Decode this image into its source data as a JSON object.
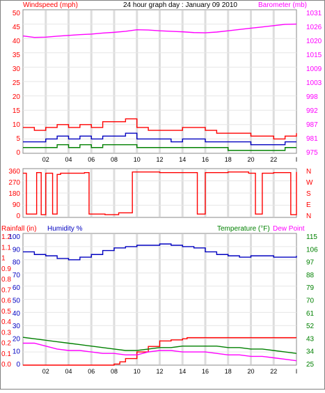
{
  "header": {
    "left_label": "Windspeed (mph)",
    "title": "24 hour graph day : January 09 2010",
    "right_label": "Barometer (mb)"
  },
  "colors": {
    "wind": "#ff0000",
    "wind_avg": "#0000c0",
    "wind_gust_low": "#008000",
    "barometer": "#ff00ff",
    "rain": "#ff0000",
    "humidity": "#0000c0",
    "temperature": "#008000",
    "dewpoint": "#ff00ff",
    "grid": "#c8c8c8"
  },
  "chart_data": [
    {
      "type": "line",
      "title": "24 hour graph day : January 09 2010",
      "ylabel_left": "Windspeed (mph)",
      "ylabel_right": "Barometer (mb)",
      "x_ticks": [
        "02",
        "04",
        "06",
        "08",
        "10",
        "12",
        "14",
        "16",
        "18",
        "20",
        "22",
        "I"
      ],
      "y_ticks_left": [
        "50",
        "45",
        "40",
        "35",
        "30",
        "25",
        "20",
        "15",
        "10",
        "5",
        "0"
      ],
      "y_ticks_right": [
        "1031",
        "1026",
        "1020",
        "1015",
        "1009",
        "1003",
        "998",
        "992",
        "987",
        "981",
        "975"
      ],
      "ylim_left": [
        0,
        50
      ],
      "ylim_right": [
        975,
        1031
      ],
      "grid": true,
      "series": [
        {
          "name": "Windspeed (mph)",
          "axis": "left",
          "x": [
            0,
            1,
            2,
            3,
            4,
            5,
            6,
            7,
            8,
            9,
            10,
            11,
            12,
            13,
            14,
            15,
            16,
            17,
            18,
            19,
            20,
            21,
            22,
            23,
            24
          ],
          "values": [
            9,
            8,
            9,
            10,
            9,
            10,
            9,
            11,
            11,
            12,
            9,
            8,
            8,
            8,
            9,
            9,
            8,
            7,
            7,
            7,
            6,
            6,
            5,
            6,
            7
          ]
        },
        {
          "name": "Wind average",
          "axis": "left",
          "x": [
            0,
            1,
            2,
            3,
            4,
            5,
            6,
            7,
            8,
            9,
            10,
            11,
            12,
            13,
            14,
            15,
            16,
            17,
            18,
            19,
            20,
            21,
            22,
            23,
            24
          ],
          "values": [
            4,
            4,
            5,
            6,
            5,
            6,
            5,
            6,
            6,
            7,
            5,
            5,
            5,
            4,
            5,
            5,
            4,
            4,
            4,
            4,
            3,
            3,
            3,
            4,
            4
          ]
        },
        {
          "name": "Wind low",
          "axis": "left",
          "x": [
            0,
            1,
            2,
            3,
            4,
            5,
            6,
            7,
            8,
            9,
            10,
            11,
            12,
            13,
            14,
            15,
            16,
            17,
            18,
            19,
            20,
            21,
            22,
            23,
            24
          ],
          "values": [
            2,
            2,
            2,
            3,
            2,
            3,
            2,
            3,
            3,
            3,
            2,
            2,
            2,
            2,
            2,
            2,
            2,
            2,
            1,
            1,
            1,
            1,
            1,
            2,
            2
          ]
        },
        {
          "name": "Barometer (mb)",
          "axis": "right",
          "x": [
            0,
            1,
            2,
            3,
            4,
            5,
            6,
            7,
            8,
            9,
            10,
            11,
            12,
            13,
            14,
            15,
            16,
            17,
            18,
            19,
            20,
            21,
            22,
            23,
            24
          ],
          "values": [
            1020.8,
            1020.2,
            1020.3,
            1020.7,
            1021.0,
            1021.3,
            1021.5,
            1021.9,
            1022.2,
            1022.6,
            1023.2,
            1023.1,
            1022.8,
            1022.6,
            1022.4,
            1022.1,
            1022.0,
            1022.3,
            1022.8,
            1023.3,
            1023.8,
            1024.3,
            1024.8,
            1025.3,
            1025.4
          ]
        }
      ]
    },
    {
      "type": "line",
      "title": "",
      "y_ticks_left": [
        "360",
        "270",
        "180",
        "90",
        "0"
      ],
      "y_ticks_right": [
        "N",
        "W",
        "S",
        "E",
        "N"
      ],
      "ylim": [
        0,
        360
      ],
      "series": [
        {
          "name": "Wind direction",
          "x": [
            0,
            0.3,
            1.2,
            1.6,
            2.0,
            2.6,
            3.0,
            3.3,
            5.4,
            5.8,
            7.2,
            8.4,
            9.6,
            12,
            15.3,
            16,
            18,
            19.8,
            20.4,
            21,
            22,
            23.5,
            24
          ],
          "values": [
            340,
            10,
            345,
            5,
            340,
            10,
            330,
            340,
            345,
            10,
            5,
            20,
            350,
            345,
            10,
            345,
            350,
            340,
            10,
            340,
            345,
            5,
            350
          ]
        }
      ]
    },
    {
      "type": "line",
      "title": "",
      "ylabel_left": [
        "Rainfall (in)",
        "Humidity %"
      ],
      "ylabel_right": [
        "Temperature (°F)",
        "Dew Point"
      ],
      "y_ticks_left_rain": [
        "1.2",
        "1.1",
        "1",
        "0.9",
        "0.8",
        "0.7",
        "0.6",
        "0.5",
        "0.4",
        "0.3",
        "0.2",
        "0.1",
        "0.0"
      ],
      "y_ticks_left_humidity": [
        "100",
        "90",
        "80",
        "70",
        "60",
        "50",
        "40",
        "30",
        "20",
        "10",
        "0"
      ],
      "y_ticks_right": [
        "115",
        "106",
        "97",
        "88",
        "79",
        "70",
        "61",
        "52",
        "43",
        "34",
        "25"
      ],
      "ylim_humidity": [
        0,
        100
      ],
      "ylim_rain": [
        0,
        1.2
      ],
      "ylim_right": [
        25,
        115
      ],
      "series": [
        {
          "name": "Humidity %",
          "axis": "humidity",
          "x": [
            0,
            1,
            2,
            3,
            4,
            5,
            6,
            7,
            8,
            9,
            10,
            11,
            12,
            13,
            14,
            15,
            16,
            17,
            18,
            19,
            20,
            21,
            22,
            23,
            24
          ],
          "values": [
            86,
            84,
            83,
            81,
            80,
            82,
            84,
            87,
            89,
            90,
            91,
            91,
            92,
            91,
            90,
            89,
            86,
            84,
            83,
            82,
            83,
            83,
            82,
            82,
            83
          ]
        },
        {
          "name": "Rainfall (in)",
          "axis": "rain",
          "x": [
            0,
            3,
            6,
            7.5,
            8,
            8.5,
            9,
            10,
            11,
            12,
            13,
            14,
            14.4,
            15,
            18,
            21,
            24
          ],
          "values": [
            0,
            0,
            0,
            0,
            0.01,
            0.03,
            0.06,
            0.12,
            0.17,
            0.22,
            0.23,
            0.24,
            0.25,
            0.25,
            0.25,
            0.25,
            0.25
          ]
        },
        {
          "name": "Temperature (°F)",
          "axis": "right",
          "x": [
            0,
            1,
            2,
            3,
            4,
            5,
            6,
            7,
            8,
            9,
            10,
            11,
            12,
            13,
            14,
            15,
            16,
            17,
            18,
            19,
            20,
            21,
            22,
            23,
            24
          ],
          "values": [
            44,
            43,
            42,
            41,
            40,
            39,
            38,
            37,
            36,
            35,
            35,
            36,
            37,
            37,
            38,
            38,
            38,
            38,
            37,
            37,
            36,
            36,
            35,
            34,
            33
          ]
        },
        {
          "name": "Dew Point",
          "axis": "right",
          "x": [
            0,
            1,
            2,
            3,
            4,
            5,
            6,
            7,
            8,
            9,
            10,
            11,
            12,
            13,
            14,
            15,
            16,
            17,
            18,
            19,
            20,
            21,
            22,
            23,
            24
          ],
          "values": [
            40,
            40,
            38,
            36,
            35,
            35,
            34,
            33,
            33,
            32,
            32,
            34,
            35,
            35,
            34,
            34,
            34,
            33,
            32,
            32,
            31,
            31,
            30,
            29,
            28
          ]
        }
      ]
    }
  ]
}
